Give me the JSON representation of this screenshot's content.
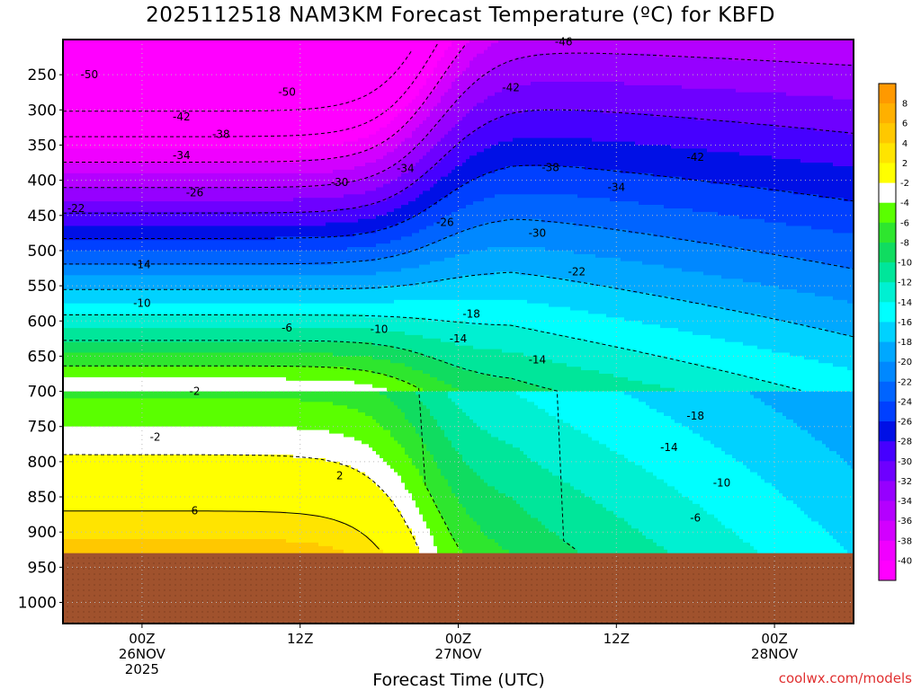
{
  "chart_data": {
    "type": "heatmap",
    "title": "2025112518 NAM3KM Forecast Temperature (ºC) for KBFD",
    "xlabel": "Forecast Time (UTC)",
    "ylabel": "",
    "x_ticks": [
      {
        "hours": 6,
        "lines": [
          "00Z",
          "26NOV",
          "2025"
        ]
      },
      {
        "hours": 18,
        "lines": [
          "12Z"
        ]
      },
      {
        "hours": 30,
        "lines": [
          "00Z",
          "27NOV"
        ]
      },
      {
        "hours": 42,
        "lines": [
          "12Z"
        ]
      },
      {
        "hours": 54,
        "lines": [
          "00Z",
          "28NOV"
        ]
      }
    ],
    "xlim_hours": [
      0,
      60
    ],
    "y_ticks": [
      250,
      300,
      350,
      400,
      450,
      500,
      550,
      600,
      650,
      700,
      750,
      800,
      850,
      900,
      950,
      1000
    ],
    "ylim": [
      200,
      1030
    ],
    "ground_pressure": 930,
    "grid": true,
    "colorbar": {
      "levels": [
        8,
        6,
        4,
        2,
        -2,
        -4,
        -6,
        -8,
        -10,
        -12,
        -14,
        -16,
        -18,
        -20,
        -22,
        -24,
        -26,
        -28,
        -30,
        -32,
        -34,
        -36,
        -38,
        -40
      ],
      "colors": [
        "#ff9900",
        "#ffb000",
        "#ffc800",
        "#ffe400",
        "#ffff00",
        "#ffffff",
        "#5aff00",
        "#2ee62e",
        "#10dc60",
        "#00e69a",
        "#00f0d2",
        "#00ffff",
        "#00d2ff",
        "#00a8ff",
        "#0088ff",
        "#0064ff",
        "#0040ff",
        "#0010e6",
        "#4600ff",
        "#6e00ff",
        "#9600ff",
        "#b400ff",
        "#d200ff",
        "#f000ff",
        "#ff00ff"
      ]
    },
    "contours": [
      {
        "label": "-50",
        "at": [
          [
            2,
            250
          ],
          [
            17,
            275
          ]
        ]
      },
      {
        "label": "-46",
        "at": [
          [
            38,
            203
          ]
        ]
      },
      {
        "label": "-42",
        "at": [
          [
            9,
            310
          ],
          [
            34,
            268
          ],
          [
            48,
            367
          ]
        ]
      },
      {
        "label": "-38",
        "at": [
          [
            12,
            335
          ],
          [
            37,
            382
          ]
        ]
      },
      {
        "label": "-34",
        "at": [
          [
            9,
            365
          ],
          [
            26,
            383
          ],
          [
            42,
            410
          ]
        ]
      },
      {
        "label": "-30",
        "at": [
          [
            21,
            403
          ],
          [
            36,
            475
          ]
        ]
      },
      {
        "label": "-26",
        "at": [
          [
            10,
            418
          ],
          [
            29,
            460
          ]
        ]
      },
      {
        "label": "-22",
        "at": [
          [
            1,
            440
          ],
          [
            39,
            530
          ]
        ]
      },
      {
        "label": "-18",
        "at": [
          [
            31,
            590
          ],
          [
            48,
            735
          ]
        ]
      },
      {
        "label": "-14",
        "at": [
          [
            6,
            520
          ],
          [
            30,
            625
          ],
          [
            36,
            655
          ],
          [
            46,
            780
          ]
        ]
      },
      {
        "label": "-10",
        "at": [
          [
            6,
            575
          ],
          [
            24,
            612
          ],
          [
            50,
            830
          ]
        ]
      },
      {
        "label": "-6",
        "at": [
          [
            17,
            610
          ],
          [
            48,
            880
          ]
        ]
      },
      {
        "label": "-2",
        "at": [
          [
            10,
            700
          ],
          [
            7,
            765
          ]
        ]
      },
      {
        "label": "2",
        "at": [
          [
            21,
            820
          ]
        ]
      },
      {
        "label": "6",
        "at": [
          [
            10,
            870
          ]
        ]
      }
    ]
  },
  "watermark": "coolwx.com/models"
}
